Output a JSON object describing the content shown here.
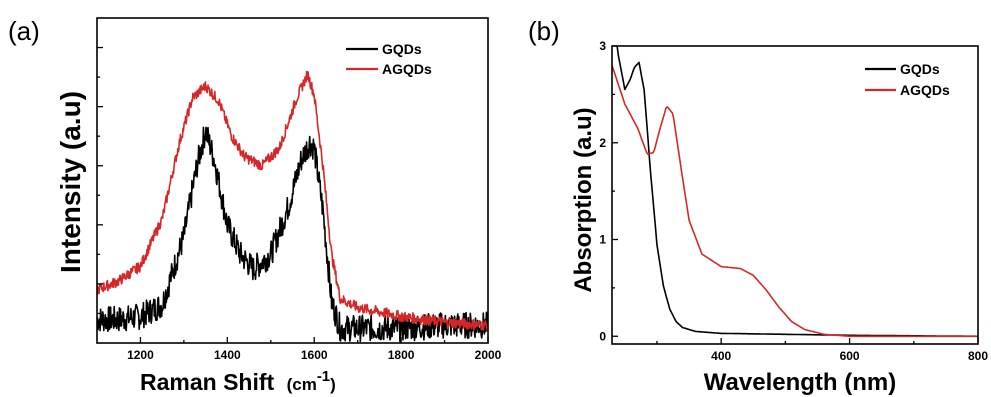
{
  "chart_data": [
    {
      "type": "line",
      "panel_label": "(a)",
      "xlabel": "Raman Shift",
      "xlabel_unit": "(cm",
      "xlabel_unit_sup": "-1",
      "xlabel_unit_close": ")",
      "ylabel": "Intensity (a.u)",
      "xlim": [
        1100,
        2000
      ],
      "ylim": [
        0,
        1.1
      ],
      "x_ticks": [
        1200,
        1400,
        1600,
        1800,
        2000
      ],
      "y_ticks_labeled": false,
      "noise": true,
      "legend_position": "top-right",
      "series": [
        {
          "name": "GQDs",
          "color": "#000000",
          "x": [
            1100,
            1150,
            1200,
            1250,
            1300,
            1330,
            1350,
            1370,
            1400,
            1430,
            1460,
            1500,
            1540,
            1570,
            1590,
            1600,
            1620,
            1640,
            1660,
            1700,
            1800,
            1900,
            2000
          ],
          "y": [
            0.08,
            0.08,
            0.09,
            0.13,
            0.36,
            0.6,
            0.72,
            0.62,
            0.4,
            0.3,
            0.25,
            0.3,
            0.46,
            0.62,
            0.68,
            0.66,
            0.45,
            0.14,
            0.05,
            0.05,
            0.05,
            0.06,
            0.06
          ]
        },
        {
          "name": "AGQDs",
          "color": "#d62728",
          "x": [
            1100,
            1150,
            1200,
            1250,
            1290,
            1320,
            1350,
            1380,
            1410,
            1440,
            1480,
            1520,
            1560,
            1585,
            1600,
            1620,
            1640,
            1660,
            1700,
            1800,
            1900,
            2000
          ],
          "y": [
            0.18,
            0.21,
            0.26,
            0.42,
            0.68,
            0.83,
            0.87,
            0.82,
            0.7,
            0.63,
            0.6,
            0.66,
            0.83,
            0.91,
            0.84,
            0.6,
            0.3,
            0.15,
            0.12,
            0.09,
            0.07,
            0.06
          ]
        }
      ]
    },
    {
      "type": "line",
      "panel_label": "(b)",
      "xlabel": "Wavelength (nm)",
      "ylabel": "Absorption (a.u)",
      "xlim": [
        230,
        800
      ],
      "ylim": [
        -0.08,
        3.0
      ],
      "x_ticks": [
        400,
        600,
        800
      ],
      "y_ticks": [
        0,
        1,
        2,
        3
      ],
      "legend_position": "top-right",
      "series": [
        {
          "name": "GQDs",
          "color": "#000000",
          "x": [
            230,
            240,
            250,
            258,
            265,
            272,
            280,
            290,
            300,
            310,
            320,
            330,
            340,
            360,
            400,
            500,
            600,
            800
          ],
          "y": [
            3.4,
            2.9,
            2.55,
            2.65,
            2.78,
            2.83,
            2.55,
            1.7,
            0.95,
            0.52,
            0.28,
            0.15,
            0.09,
            0.05,
            0.03,
            0.02,
            0.01,
            0.0
          ],
          "clip_to_plot": true
        },
        {
          "name": "AGQDs",
          "color": "#d62728",
          "x": [
            230,
            250,
            270,
            285,
            295,
            305,
            315,
            325,
            335,
            350,
            370,
            400,
            430,
            450,
            470,
            490,
            510,
            530,
            560,
            600,
            800
          ],
          "y": [
            2.8,
            2.4,
            2.15,
            1.88,
            1.9,
            2.15,
            2.38,
            2.3,
            1.85,
            1.2,
            0.85,
            0.72,
            0.7,
            0.63,
            0.48,
            0.3,
            0.15,
            0.07,
            0.02,
            0.0,
            0.0
          ]
        }
      ]
    }
  ]
}
